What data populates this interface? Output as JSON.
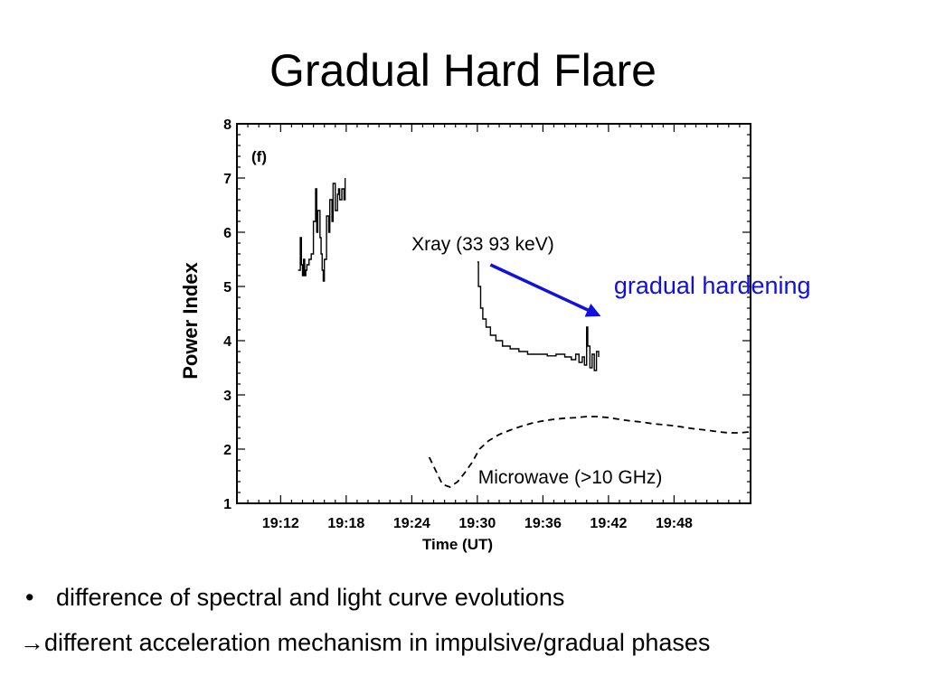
{
  "slide": {
    "title": "Gradual Hard Flare",
    "bullets": [
      {
        "marker": "•",
        "text": "difference of spectral and light curve evolutions"
      },
      {
        "marker": "→",
        "text": "different acceleration mechanism in impulsive/gradual phases"
      }
    ]
  },
  "colors": {
    "annotation": "#1010e0",
    "trace": "#000000"
  },
  "chart_data": {
    "type": "line",
    "panel_label": "(f)",
    "xlabel": "Time (UT)",
    "ylabel": "Power Index",
    "xlim_minutes": [
      68,
      115
    ],
    "ylim": [
      1,
      8
    ],
    "x_ticks": [
      {
        "value": 72,
        "label": "19:12"
      },
      {
        "value": 78,
        "label": "19:18"
      },
      {
        "value": 84,
        "label": "19:24"
      },
      {
        "value": 90,
        "label": "19:30"
      },
      {
        "value": 96,
        "label": "19:36"
      },
      {
        "value": 102,
        "label": "19:42"
      },
      {
        "value": 108,
        "label": "19:48"
      }
    ],
    "y_ticks": [
      1,
      2,
      3,
      4,
      5,
      6,
      7,
      8
    ],
    "x_units_note": "minutes after 18:00 UT",
    "series": [
      {
        "name": "Xray (33  93 keV)",
        "style": "solid",
        "segments": [
          {
            "x": [
              73.6,
              73.8,
              73.9,
              74.0,
              74.1,
              74.2,
              74.3,
              74.4,
              74.6,
              74.8,
              75.0,
              75.2,
              75.3,
              75.4,
              75.6,
              75.7,
              75.8,
              75.9,
              76.0,
              76.2,
              76.4,
              76.5,
              76.7,
              76.8,
              77.0,
              77.2,
              77.3,
              77.4,
              77.6,
              77.8,
              77.9
            ],
            "y": [
              5.3,
              5.9,
              5.4,
              5.2,
              5.5,
              5.2,
              5.3,
              5.4,
              5.5,
              5.6,
              6.2,
              6.8,
              6.0,
              6.4,
              5.9,
              5.6,
              5.3,
              5.1,
              5.5,
              6.3,
              6.0,
              6.6,
              6.2,
              6.9,
              6.4,
              6.7,
              6.8,
              6.6,
              6.8,
              6.6,
              7.0
            ]
          },
          {
            "x": [
              90.0,
              90.1,
              90.3,
              90.5,
              90.8,
              91.2,
              91.7,
              92.3,
              93.0,
              93.8,
              94.6,
              95.5,
              96.4,
              97.2,
              98.0,
              98.6,
              99.0,
              99.3,
              99.6,
              99.8,
              100.0,
              100.1,
              100.3,
              100.5,
              100.7,
              100.9,
              101.1
            ],
            "y": [
              5.45,
              5.0,
              4.6,
              4.4,
              4.25,
              4.1,
              4.0,
              3.9,
              3.85,
              3.8,
              3.75,
              3.75,
              3.72,
              3.75,
              3.7,
              3.65,
              3.75,
              3.6,
              3.7,
              3.55,
              4.25,
              3.9,
              3.5,
              3.75,
              3.45,
              3.8,
              3.7
            ]
          }
        ]
      },
      {
        "name": "Microwave (>10 GHz)",
        "style": "dashed",
        "segments": [
          {
            "x": [
              85.6,
              86.2,
              86.8,
              87.5,
              88.2,
              88.8,
              89.5,
              90.2,
              91.0,
              92.0,
              93.0,
              94.0,
              95.0,
              96.0,
              97.0,
              98.0,
              99.0,
              100.0,
              101.0,
              102.0,
              103.0,
              104.0,
              105.0,
              106.0,
              107.0,
              108.0,
              109.0,
              110.0,
              111.0,
              112.0,
              113.0,
              114.0,
              115.0
            ],
            "y": [
              1.85,
              1.6,
              1.35,
              1.3,
              1.4,
              1.55,
              1.75,
              2.0,
              2.15,
              2.27,
              2.35,
              2.42,
              2.48,
              2.52,
              2.55,
              2.57,
              2.58,
              2.6,
              2.6,
              2.58,
              2.55,
              2.52,
              2.5,
              2.47,
              2.45,
              2.43,
              2.4,
              2.37,
              2.35,
              2.32,
              2.3,
              2.3,
              2.32
            ]
          }
        ]
      }
    ],
    "annotations": [
      {
        "text": "Xray (33  93 keV)",
        "x": 90.5,
        "y": 5.8
      },
      {
        "text": "Microwave (>10 GHz)",
        "x": 98.5,
        "y": 1.5
      },
      {
        "text": "gradual hardening",
        "x": 111.5,
        "y": 5.0,
        "color": "#1010e0"
      }
    ],
    "arrow": {
      "from": {
        "x": 91.2,
        "y": 5.4
      },
      "to": {
        "x": 101.3,
        "y": 4.45
      },
      "color": "#1010e0"
    }
  }
}
